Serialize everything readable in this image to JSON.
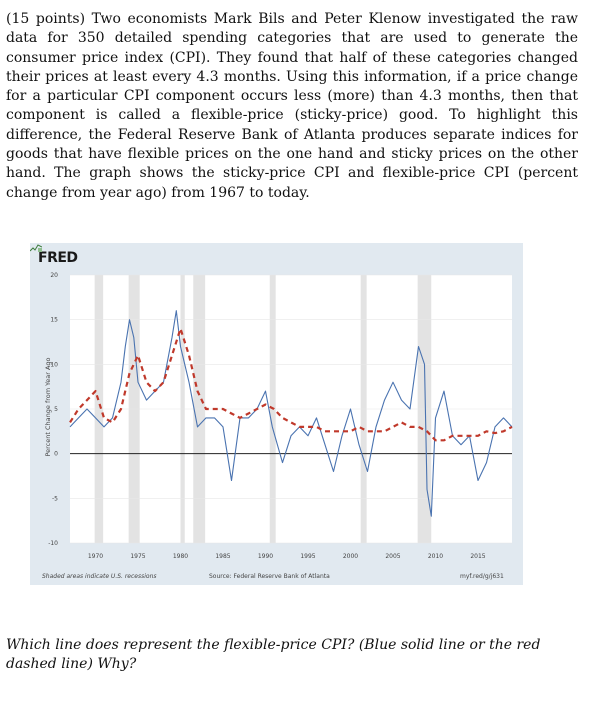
{
  "document": {
    "paragraph": "(15 points) Two economists Mark Bils and Peter Klenow investigated the raw data for 350 detailed spending categories that are used to generate the consumer price index (CPI). They found that half of these categories changed their prices at least every 4.3 months. Using this information, if a price change for a particular CPI component occurs less (more) than 4.3 months, then that component is called a flexible-price (sticky-price) good. To highlight this difference, the Federal Reserve Bank of Atlanta produces separate indices for goods that have flexible prices on the one hand and sticky prices on the other hand. The graph shows the sticky-price CPI and flexible-price CPI (percent change from year ago) from 1967 to today.",
    "question": "Which line does represent the flexible-price CPI? (Blue solid line or the red dashed line) Why?"
  },
  "figure": {
    "logo_text": "FRED",
    "footer_left": "Shaded areas indicate U.S. recessions",
    "footer_source": "Source: Federal Reserve Bank of Atlanta",
    "footer_link": "myf.red/g/j631"
  },
  "chart_data": {
    "type": "line",
    "title": "",
    "xlabel": "",
    "ylabel": "Percent Change from Year Ago",
    "xlim": [
      1967,
      2019
    ],
    "ylim": [
      -10,
      20
    ],
    "x_ticks": [
      1970,
      1975,
      1980,
      1985,
      1990,
      1995,
      2000,
      2005,
      2010,
      2015
    ],
    "y_ticks": [
      -10,
      -5,
      0,
      5,
      10,
      15,
      20
    ],
    "grid": true,
    "recessions": [
      [
        1969.9,
        1970.9
      ],
      [
        1973.9,
        1975.2
      ],
      [
        1980.0,
        1980.5
      ],
      [
        1981.5,
        1982.9
      ],
      [
        1990.5,
        1991.2
      ],
      [
        2001.2,
        2001.9
      ],
      [
        2007.9,
        2009.5
      ]
    ],
    "series": [
      {
        "style": "solid",
        "color": "#4a73b0",
        "x": [
          1967,
          1968,
          1969,
          1970,
          1971,
          1972,
          1973,
          1973.5,
          1974,
          1974.5,
          1975,
          1976,
          1977,
          1978,
          1979,
          1979.5,
          1980,
          1981,
          1982,
          1983,
          1984,
          1985,
          1986,
          1987,
          1988,
          1989,
          1990,
          1990.8,
          1992,
          1993,
          1994,
          1995,
          1996,
          1997,
          1998,
          1999,
          2000,
          2001,
          2002,
          2003,
          2004,
          2005,
          2006,
          2007,
          2008,
          2008.7,
          2009,
          2009.5,
          2010,
          2011,
          2012,
          2013,
          2014,
          2015,
          2016,
          2017,
          2018,
          2019
        ],
        "y": [
          3,
          4,
          5,
          4,
          3,
          4,
          8,
          12,
          15,
          13,
          8,
          6,
          7,
          8,
          13,
          16,
          12,
          8,
          3,
          4,
          4,
          3,
          -3,
          4,
          4,
          5,
          7,
          3,
          -1,
          2,
          3,
          2,
          4,
          1,
          -2,
          2,
          5,
          1,
          -2,
          3,
          6,
          8,
          6,
          5,
          12,
          10,
          -4,
          -7,
          4,
          7,
          2,
          1,
          2,
          -3,
          -1,
          3,
          4,
          3
        ]
      },
      {
        "style": "dashed",
        "color": "#c0392b",
        "x": [
          1967,
          1968,
          1969,
          1970,
          1971,
          1972,
          1973,
          1974,
          1975,
          1976,
          1977,
          1978,
          1979,
          1980,
          1981,
          1982,
          1983,
          1984,
          1985,
          1986,
          1987,
          1988,
          1989,
          1990,
          1991,
          1992,
          1993,
          1994,
          1995,
          1996,
          1997,
          1998,
          1999,
          2000,
          2001,
          2002,
          2003,
          2004,
          2005,
          2006,
          2007,
          2008,
          2009,
          2010,
          2011,
          2012,
          2013,
          2014,
          2015,
          2016,
          2017,
          2018,
          2019
        ],
        "y": [
          3.5,
          5,
          6,
          7,
          4,
          3.5,
          5,
          9,
          11,
          8,
          7,
          8,
          11,
          14,
          11,
          7,
          5,
          5,
          5,
          4.5,
          4,
          4.5,
          5,
          5.5,
          5,
          4,
          3.5,
          3,
          3,
          3,
          2.5,
          2.5,
          2.5,
          2.5,
          3,
          2.5,
          2.5,
          2.5,
          3,
          3.5,
          3,
          3,
          2.5,
          1.5,
          1.5,
          2,
          2,
          2,
          2,
          2.5,
          2.3,
          2.5,
          3
        ]
      }
    ]
  }
}
